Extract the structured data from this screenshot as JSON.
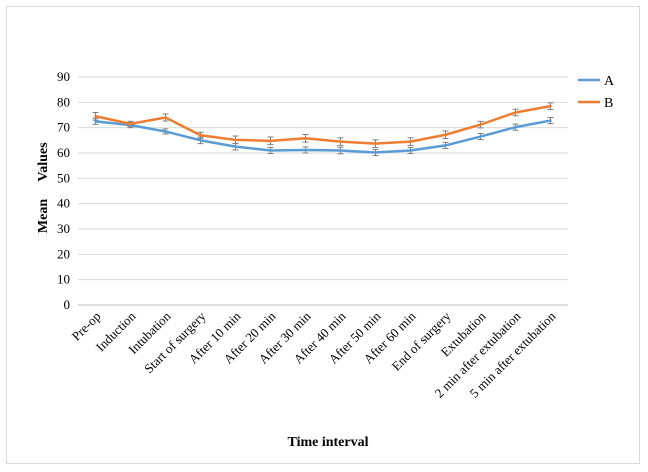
{
  "chart_data": {
    "type": "line",
    "title": "",
    "xlabel": "Time interval",
    "ylabel_parts": [
      "Mean",
      "Values"
    ],
    "ylim": [
      0,
      90
    ],
    "yticks": [
      0,
      10,
      20,
      30,
      40,
      50,
      60,
      70,
      80,
      90
    ],
    "grid": true,
    "legend_position": "top-right",
    "categories": [
      "Pre-op",
      "Induction",
      "Intubation",
      "Start of surgery",
      "After 10 min",
      "After 20 min",
      "After 30 min",
      "After 40 min",
      "After 50 min",
      "After 60 min",
      "End of surgery",
      "Extubation",
      "2 min after extubation",
      "5 min after extubation"
    ],
    "series": [
      {
        "name": "A",
        "color": "#5b9bd5",
        "values": [
          72.5,
          71,
          68.5,
          65,
          62.5,
          61,
          61.2,
          61,
          60.2,
          61,
          63,
          66.5,
          70.2,
          72.8
        ],
        "error": [
          1.2,
          1.0,
          1.0,
          1.3,
          1.3,
          1.2,
          1.2,
          1.3,
          1.2,
          1.2,
          1.2,
          1.2,
          1.2,
          1.2
        ]
      },
      {
        "name": "B",
        "color": "#ed7d31",
        "values": [
          74.5,
          71.5,
          74,
          67,
          65.2,
          64.8,
          65.8,
          64.5,
          63.7,
          64.5,
          67.2,
          71.2,
          76,
          78.5
        ],
        "error": [
          1.5,
          1.0,
          1.4,
          1.2,
          1.5,
          1.5,
          1.5,
          1.5,
          1.5,
          1.5,
          1.5,
          1.3,
          1.3,
          1.3
        ]
      }
    ]
  }
}
